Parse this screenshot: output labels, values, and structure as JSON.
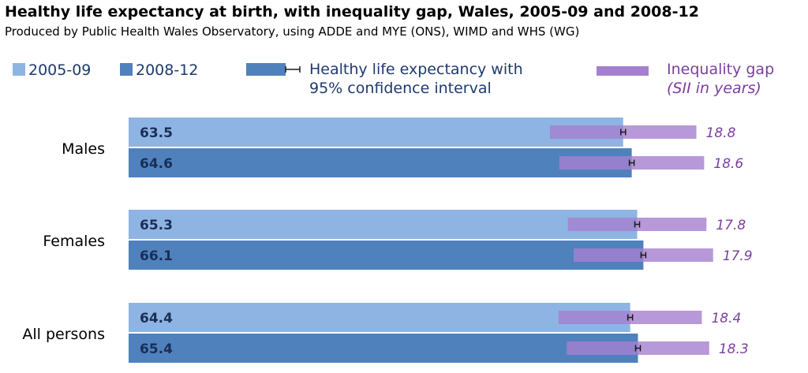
{
  "chart_data": {
    "type": "bar",
    "orientation": "horizontal",
    "title": "Healthy life expectancy at birth, with inequality gap, Wales, 2005-09 and 2008-12",
    "subtitle": "Produced by Public Health Wales Observatory, using ADDE and MYE (ONS), WIMD and WHS (WG)",
    "categories": [
      "Males",
      "Females",
      "All persons"
    ],
    "series": [
      {
        "name": "2005-09",
        "color": "#8eb4e3",
        "values": [
          63.5,
          65.3,
          64.4
        ]
      },
      {
        "name": "2008-12",
        "color": "#4f81bd",
        "values": [
          64.6,
          66.1,
          65.4
        ]
      }
    ],
    "inequality_gap": {
      "label_line1": "Inequality gap",
      "label_line2": "(SII in years)",
      "color": "#a57fd0",
      "values": [
        [
          18.8,
          18.6
        ],
        [
          17.8,
          17.9
        ],
        [
          18.4,
          18.3
        ]
      ]
    },
    "ci_legend_line1": "Healthy life expectancy with",
    "ci_legend_line2": "95% confidence interval",
    "xlim": [
      0,
      77
    ],
    "legend_position": "top"
  }
}
